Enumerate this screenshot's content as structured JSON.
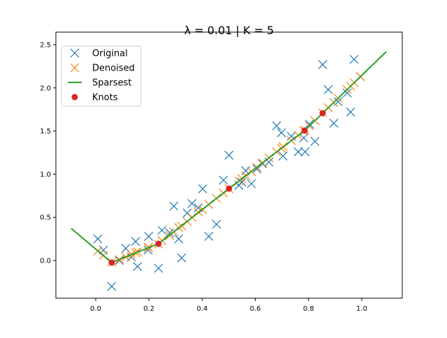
{
  "chart_data": {
    "type": "scatter",
    "title": "λ = 0.01   |   K = 5",
    "xlabel": "",
    "ylabel": "",
    "xlim": [
      -0.15,
      1.15
    ],
    "ylim": [
      -0.43,
      2.55
    ],
    "xticks": [
      0.0,
      0.2,
      0.4,
      0.6,
      0.8,
      1.0
    ],
    "xtick_labels": [
      "0.0",
      "0.2",
      "0.4",
      "0.6",
      "0.8",
      "1.0"
    ],
    "yticks": [
      0.0,
      0.5,
      1.0,
      1.5,
      2.0,
      2.5
    ],
    "ytick_labels": [
      "0.0",
      "0.5",
      "1.0",
      "1.5",
      "2.0",
      "2.5"
    ],
    "grid": false,
    "legend_placement": "upper-left",
    "series": [
      {
        "name": "Original",
        "marker": "x",
        "color": "#1f77b4",
        "points": [
          [
            0.008,
            0.25
          ],
          [
            0.029,
            0.12
          ],
          [
            0.06,
            -0.3
          ],
          [
            0.089,
            0.0
          ],
          [
            0.113,
            0.14
          ],
          [
            0.134,
            0.04
          ],
          [
            0.15,
            0.22
          ],
          [
            0.157,
            -0.07
          ],
          [
            0.199,
            0.28
          ],
          [
            0.197,
            0.12
          ],
          [
            0.236,
            -0.09
          ],
          [
            0.249,
            0.35
          ],
          [
            0.278,
            0.32
          ],
          [
            0.294,
            0.63
          ],
          [
            0.312,
            0.25
          ],
          [
            0.323,
            0.03
          ],
          [
            0.344,
            0.55
          ],
          [
            0.362,
            0.66
          ],
          [
            0.386,
            0.61
          ],
          [
            0.402,
            0.83
          ],
          [
            0.425,
            0.28
          ],
          [
            0.454,
            0.42
          ],
          [
            0.48,
            0.93
          ],
          [
            0.501,
            1.22
          ],
          [
            0.538,
            0.87
          ],
          [
            0.549,
            0.91
          ],
          [
            0.564,
            1.04
          ],
          [
            0.585,
            0.89
          ],
          [
            0.606,
            1.06
          ],
          [
            0.627,
            1.12
          ],
          [
            0.651,
            1.14
          ],
          [
            0.68,
            1.56
          ],
          [
            0.698,
            1.48
          ],
          [
            0.704,
            1.21
          ],
          [
            0.735,
            1.44
          ],
          [
            0.761,
            1.26
          ],
          [
            0.787,
            1.26
          ],
          [
            0.782,
            1.42
          ],
          [
            0.803,
            1.58
          ],
          [
            0.824,
            1.38
          ],
          [
            0.853,
            2.27
          ],
          [
            0.874,
            1.98
          ],
          [
            0.895,
            1.59
          ],
          [
            0.911,
            1.84
          ],
          [
            0.945,
            1.94
          ],
          [
            0.958,
            1.72
          ],
          [
            0.971,
            2.33
          ],
          [
            0.995,
            2.13
          ]
        ]
      },
      {
        "name": "Denoised",
        "marker": "x",
        "color": "#ff7f0e",
        "points": [
          [
            0.008,
            0.11
          ],
          [
            0.029,
            0.06
          ],
          [
            0.06,
            -0.02
          ],
          [
            0.089,
            0.01
          ],
          [
            0.113,
            0.04
          ],
          [
            0.134,
            0.07
          ],
          [
            0.15,
            0.09
          ],
          [
            0.157,
            0.1
          ],
          [
            0.199,
            0.15
          ],
          [
            0.197,
            0.15
          ],
          [
            0.236,
            0.19
          ],
          [
            0.249,
            0.23
          ],
          [
            0.278,
            0.29
          ],
          [
            0.294,
            0.33
          ],
          [
            0.312,
            0.38
          ],
          [
            0.323,
            0.4
          ],
          [
            0.344,
            0.45
          ],
          [
            0.362,
            0.5
          ],
          [
            0.386,
            0.56
          ],
          [
            0.402,
            0.59
          ],
          [
            0.425,
            0.65
          ],
          [
            0.454,
            0.72
          ],
          [
            0.48,
            0.78
          ],
          [
            0.501,
            0.83
          ],
          [
            0.538,
            0.92
          ],
          [
            0.549,
            0.95
          ],
          [
            0.564,
            0.98
          ],
          [
            0.585,
            1.03
          ],
          [
            0.606,
            1.08
          ],
          [
            0.627,
            1.13
          ],
          [
            0.651,
            1.19
          ],
          [
            0.68,
            1.26
          ],
          [
            0.698,
            1.3
          ],
          [
            0.704,
            1.32
          ],
          [
            0.735,
            1.39
          ],
          [
            0.761,
            1.45
          ],
          [
            0.787,
            1.51
          ],
          [
            0.782,
            1.5
          ],
          [
            0.803,
            1.56
          ],
          [
            0.824,
            1.62
          ],
          [
            0.853,
            1.71
          ],
          [
            0.874,
            1.77
          ],
          [
            0.895,
            1.83
          ],
          [
            0.911,
            1.88
          ],
          [
            0.945,
            1.98
          ],
          [
            0.958,
            2.02
          ],
          [
            0.971,
            2.06
          ],
          [
            0.995,
            2.13
          ]
        ]
      },
      {
        "name": "Sparsest",
        "marker": "line",
        "color": "#2ca02c",
        "points": [
          [
            -0.092,
            0.372
          ],
          [
            0.06,
            -0.024
          ],
          [
            0.236,
            0.194
          ],
          [
            0.501,
            0.833
          ],
          [
            0.785,
            1.505
          ],
          [
            0.853,
            1.707
          ],
          [
            1.092,
            2.419
          ]
        ]
      },
      {
        "name": "Knots",
        "marker": "o",
        "color": "#d62728",
        "points": [
          [
            0.06,
            -0.024
          ],
          [
            0.236,
            0.194
          ],
          [
            0.501,
            0.833
          ],
          [
            0.785,
            1.505
          ],
          [
            0.853,
            1.707
          ]
        ]
      }
    ]
  }
}
